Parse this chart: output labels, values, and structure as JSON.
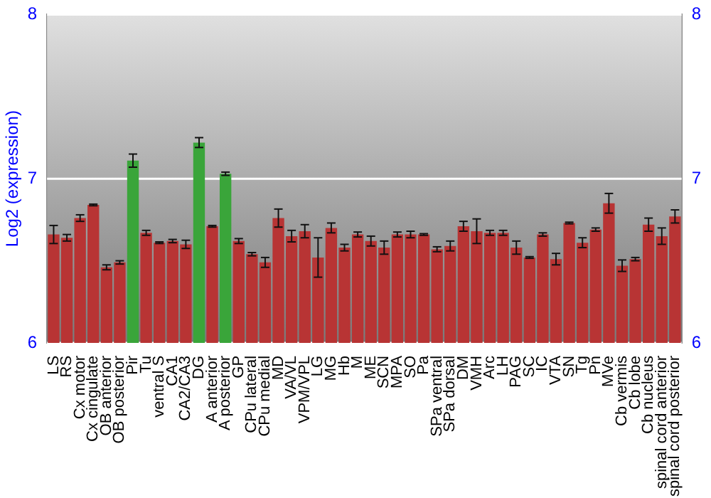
{
  "chart_data": {
    "type": "bar",
    "ylabel": "Log2 (expression)",
    "categories": [
      "LS",
      "RS",
      "Cx motor",
      "Cx cingulate",
      "OB anterior",
      "OB posterior",
      "Pir",
      "Tu",
      "ventral S",
      "CA1",
      "CA2/CA3",
      "DG",
      "A anterior",
      "A posterior",
      "GP",
      "CPu lateral",
      "CPu medial",
      "MD",
      "VA/VL",
      "VPM/VPL",
      "LG",
      "MG",
      "Hb",
      "M",
      "ME",
      "SCN",
      "MPA",
      "SO",
      "Pa",
      "SPa ventral",
      "SPa dorsal",
      "DM",
      "VMH",
      "Arc",
      "LH",
      "PAG",
      "SC",
      "IC",
      "VTA",
      "SN",
      "Tg",
      "Pn",
      "MVe",
      "Cb vermis",
      "Cb lobe",
      "Cb nucleus",
      "spinal cord anterior",
      "spinal cord posterior"
    ],
    "values": [
      6.66,
      6.64,
      6.76,
      6.84,
      6.46,
      6.49,
      7.11,
      6.67,
      6.61,
      6.62,
      6.6,
      7.22,
      6.71,
      7.03,
      6.62,
      6.54,
      6.49,
      6.76,
      6.65,
      6.68,
      6.52,
      6.7,
      6.58,
      6.66,
      6.62,
      6.58,
      6.66,
      6.66,
      6.66,
      6.57,
      6.59,
      6.71,
      6.68,
      6.67,
      6.67,
      6.58,
      6.52,
      6.66,
      6.51,
      6.73,
      6.61,
      6.69,
      6.85,
      6.47,
      6.51,
      6.72,
      6.65,
      6.77
    ],
    "errors": [
      0.055,
      0.02,
      0.02,
      0.005,
      0.015,
      0.01,
      0.04,
      0.015,
      0.005,
      0.01,
      0.025,
      0.03,
      0.005,
      0.01,
      0.015,
      0.01,
      0.03,
      0.055,
      0.035,
      0.04,
      0.12,
      0.03,
      0.02,
      0.015,
      0.03,
      0.04,
      0.015,
      0.02,
      0.005,
      0.015,
      0.03,
      0.03,
      0.075,
      0.015,
      0.015,
      0.04,
      0.005,
      0.01,
      0.035,
      0.005,
      0.03,
      0.01,
      0.06,
      0.035,
      0.01,
      0.04,
      0.05,
      0.04
    ],
    "colors": [
      "#b83434",
      "#b83434",
      "#b83434",
      "#b83434",
      "#b83434",
      "#b83434",
      "#3aa53a",
      "#b83434",
      "#b83434",
      "#b83434",
      "#b83434",
      "#3aa53a",
      "#b83434",
      "#3aa53a",
      "#b83434",
      "#b83434",
      "#b83434",
      "#b83434",
      "#b83434",
      "#b83434",
      "#b83434",
      "#b83434",
      "#b83434",
      "#b83434",
      "#b83434",
      "#b83434",
      "#b83434",
      "#b83434",
      "#b83434",
      "#b83434",
      "#b83434",
      "#b83434",
      "#b83434",
      "#b83434",
      "#b83434",
      "#b83434",
      "#b83434",
      "#b83434",
      "#b83434",
      "#b83434",
      "#b83434",
      "#b83434",
      "#b83434",
      "#b83434",
      "#b83434",
      "#b83434",
      "#b83434",
      "#b83434"
    ],
    "ylim": [
      6,
      8
    ],
    "yticks": [
      6,
      7,
      8
    ],
    "y2lim": [
      6,
      8
    ],
    "y2ticks": [
      6,
      7,
      8
    ],
    "grid": "y",
    "legend": false
  }
}
